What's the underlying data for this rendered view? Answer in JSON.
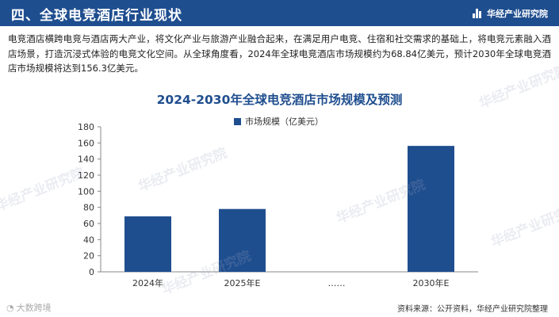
{
  "header": {
    "title": "四、全球电竞酒店行业现状",
    "brand": "华经产业研究院"
  },
  "intro_text": "电竞酒店横跨电竞与酒店两大产业，将文化产业与旅游产业融合起来，在满足用户电竞、住宿和社交需求的基础上，将电竞元素融入酒店场景，打造沉浸式体验的电竞文化空间。从全球角度看，2024年全球电竞酒店市场规模约为68.84亿美元，预计2030年全球电竞酒店市场规模将达到156.3亿美元。",
  "watermark_text": "华经产业研究院",
  "corner_mark": "大数跨境",
  "source_text": "资料来源：公开资料，华经产业研究院整理",
  "chart_data": {
    "type": "bar",
    "title": "2024-2030年全球电竞酒店市场规模及预测",
    "categories": [
      "2024年",
      "2025年E",
      "……",
      "2030年E"
    ],
    "series": [
      {
        "name": "市场规模（亿美元）",
        "values": [
          68.84,
          78,
          null,
          156.3
        ],
        "color": "#1f4e8f"
      }
    ],
    "ylim": [
      0,
      180
    ],
    "yticks": [
      0,
      20,
      40,
      60,
      80,
      100,
      120,
      140,
      160,
      180
    ],
    "grid": false,
    "legend_position": "top"
  }
}
